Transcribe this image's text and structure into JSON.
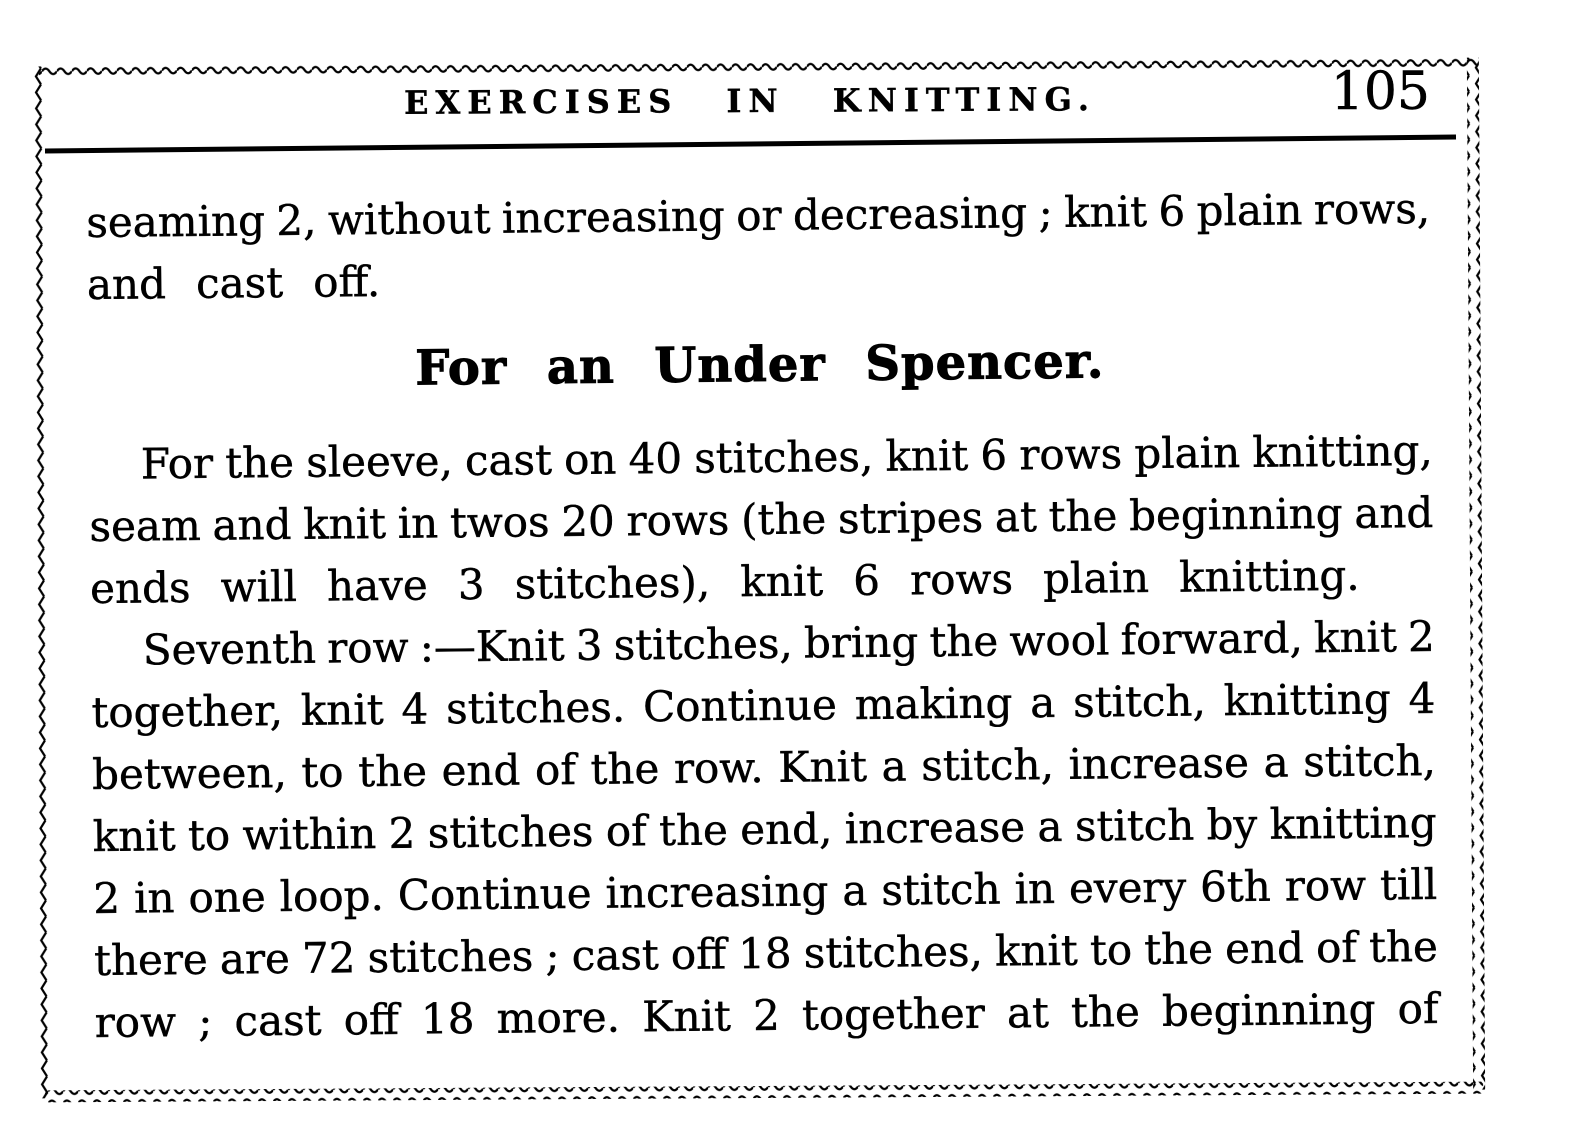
{
  "document": {
    "header": {
      "title": "EXERCISES IN KNITTING.",
      "page_number": "105"
    },
    "paragraph_1": {
      "line_1": "seaming 2, without increasing or decreasing ; knit 6 plain rows,",
      "line_2": "and cast off."
    },
    "section_heading": "For an Under Spencer.",
    "paragraph_2": {
      "line_1": "For the sleeve, cast on 40 stitches, knit 6 rows plain knitting,",
      "line_2": "seam and knit in twos 20 rows (the stripes at the beginning and",
      "line_3": "ends will have 3 stitches), knit 6 rows plain knitting."
    },
    "paragraph_3": {
      "line_1": "Seventh row :—Knit 3 stitches, bring the wool forward, knit 2",
      "line_2": "together, knit 4 stitches. Continue making a stitch, knitting 4",
      "line_3": "between, to the end of the row. Knit a stitch, increase a stitch,",
      "line_4": "knit to within 2 stitches of the end, increase a stitch by knitting",
      "line_5": "2 in one loop. Continue increasing a stitch in every 6th row till",
      "line_6": "there are 72 stitches ; cast off 18 stitches, knit to the end of the",
      "line_7": "row ; cast off 18 more. Knit 2 together at the beginning of"
    }
  }
}
